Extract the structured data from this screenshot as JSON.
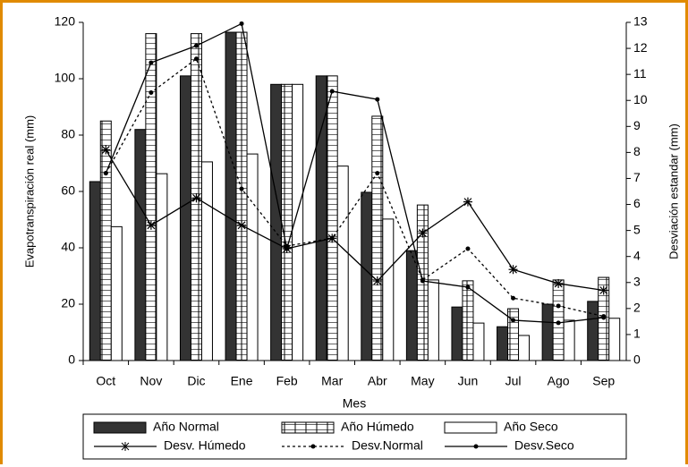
{
  "chart_data": {
    "type": "bar",
    "categories": [
      "Oct",
      "Nov",
      "Dic",
      "Ene",
      "Feb",
      "Mar",
      "Abr",
      "May",
      "Jun",
      "Jul",
      "Ago",
      "Sep"
    ],
    "x_label": "Mes",
    "y_label": "Evapotranspiración real (mm)",
    "y2_label": "Desviación estandar (mm)",
    "ylim": [
      0,
      120
    ],
    "yticks": [
      0,
      20,
      40,
      60,
      80,
      100,
      120
    ],
    "y2lim": [
      0,
      13
    ],
    "y2ticks": [
      0,
      1,
      2,
      3,
      4,
      5,
      6,
      7,
      8,
      9,
      10,
      11,
      12,
      13
    ],
    "series": [
      {
        "name": "Año Normal",
        "type": "bar",
        "color": "#333333",
        "values": [
          63.5,
          82,
          101,
          116.5,
          98,
          101,
          59.7,
          39,
          19,
          12,
          20,
          21
        ]
      },
      {
        "name": "Año Húmedo",
        "type": "bar",
        "color": "#ffffff",
        "pattern": "grid",
        "values": [
          85,
          116,
          116,
          116.5,
          98,
          101,
          86.7,
          55.2,
          28.3,
          18.4,
          28.6,
          29.5
        ]
      },
      {
        "name": "Año Seco",
        "type": "bar",
        "color": "#ffffff",
        "values": [
          47.5,
          66.3,
          70.5,
          73.3,
          98,
          69,
          50.2,
          28.6,
          13.3,
          8.9,
          14.3,
          15
        ]
      },
      {
        "name": "Desv. Húmedo",
        "type": "line",
        "axis": "y2",
        "color": "#000000",
        "marker": "star",
        "values": [
          8.1,
          5.2,
          6.25,
          5.2,
          4.3,
          4.7,
          3.06,
          4.9,
          6.1,
          3.5,
          2.96,
          2.7
        ]
      },
      {
        "name": "Desv.Normal",
        "type": "line",
        "axis": "y2",
        "color": "#000000",
        "marker": "dot",
        "dashed": true,
        "values": [
          7.2,
          10.3,
          11.6,
          6.6,
          4.4,
          4.7,
          7.2,
          3.1,
          4.3,
          2.4,
          2.1,
          1.7
        ]
      },
      {
        "name": "Desv.Seco",
        "type": "line",
        "axis": "y2",
        "color": "#000000",
        "marker": "dot",
        "values": [
          7.2,
          11.45,
          12.1,
          12.95,
          4.3,
          10.35,
          10.04,
          3.06,
          2.82,
          1.55,
          1.45,
          1.65
        ]
      }
    ]
  }
}
